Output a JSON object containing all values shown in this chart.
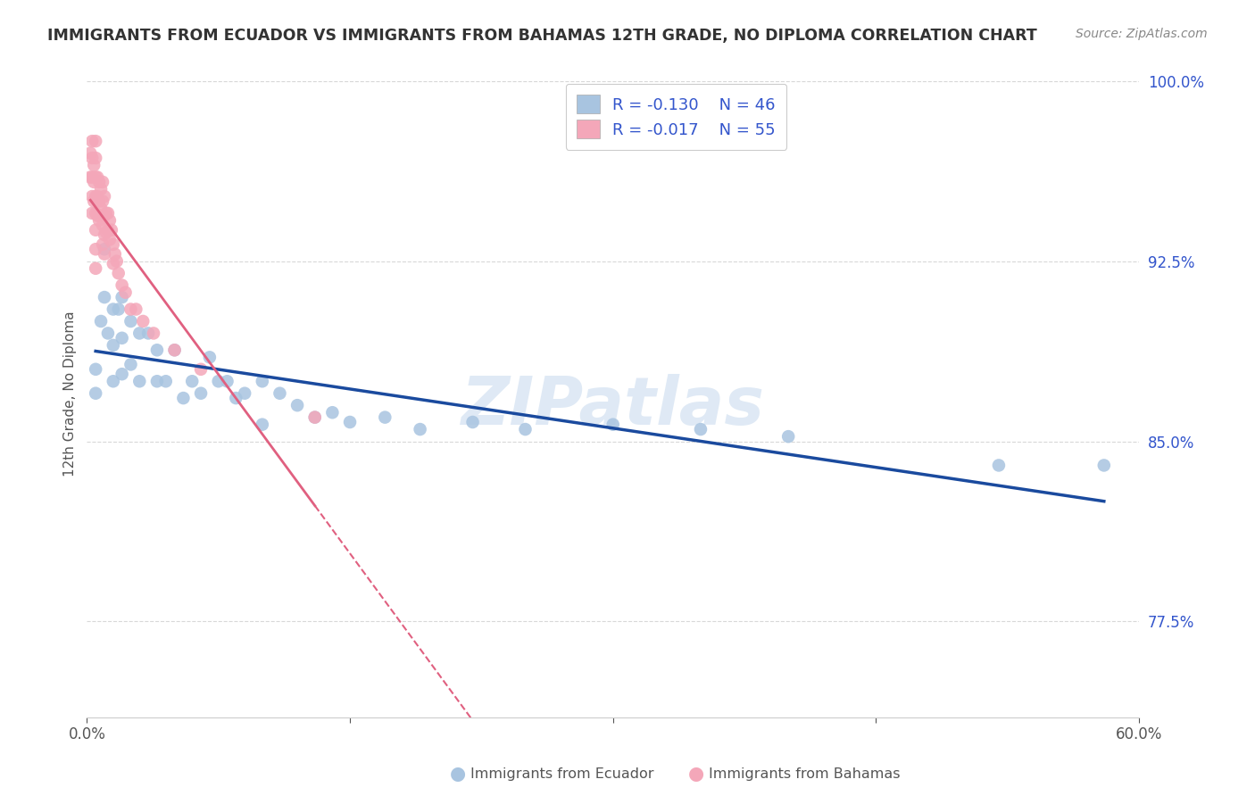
{
  "title": "IMMIGRANTS FROM ECUADOR VS IMMIGRANTS FROM BAHAMAS 12TH GRADE, NO DIPLOMA CORRELATION CHART",
  "source": "Source: ZipAtlas.com",
  "ylabel": "12th Grade, No Diploma",
  "xlim": [
    0.0,
    0.6
  ],
  "ylim": [
    0.735,
    1.005
  ],
  "yticks": [
    0.775,
    0.85,
    0.925,
    1.0
  ],
  "ytick_labels": [
    "77.5%",
    "85.0%",
    "92.5%",
    "100.0%"
  ],
  "xticks": [
    0.0,
    0.15,
    0.3,
    0.45,
    0.6
  ],
  "xtick_labels": [
    "0.0%",
    "",
    "",
    "",
    "60.0%"
  ],
  "ecuador_color": "#a8c4e0",
  "bahamas_color": "#f4a7b9",
  "ecuador_line_color": "#1a4a9e",
  "bahamas_line_color": "#e06080",
  "R_ecuador": -0.13,
  "N_ecuador": 46,
  "R_bahamas": -0.017,
  "N_bahamas": 55,
  "ecuador_x": [
    0.005,
    0.005,
    0.008,
    0.01,
    0.01,
    0.012,
    0.015,
    0.015,
    0.015,
    0.018,
    0.02,
    0.02,
    0.02,
    0.025,
    0.025,
    0.03,
    0.03,
    0.035,
    0.04,
    0.04,
    0.045,
    0.05,
    0.055,
    0.06,
    0.065,
    0.07,
    0.075,
    0.08,
    0.085,
    0.09,
    0.1,
    0.1,
    0.11,
    0.12,
    0.13,
    0.14,
    0.15,
    0.17,
    0.19,
    0.22,
    0.25,
    0.3,
    0.35,
    0.4,
    0.52,
    0.58
  ],
  "ecuador_y": [
    0.88,
    0.87,
    0.9,
    0.93,
    0.91,
    0.895,
    0.905,
    0.89,
    0.875,
    0.905,
    0.91,
    0.893,
    0.878,
    0.9,
    0.882,
    0.895,
    0.875,
    0.895,
    0.888,
    0.875,
    0.875,
    0.888,
    0.868,
    0.875,
    0.87,
    0.885,
    0.875,
    0.875,
    0.868,
    0.87,
    0.875,
    0.857,
    0.87,
    0.865,
    0.86,
    0.862,
    0.858,
    0.86,
    0.855,
    0.858,
    0.855,
    0.857,
    0.855,
    0.852,
    0.84,
    0.84
  ],
  "bahamas_x": [
    0.002,
    0.002,
    0.003,
    0.003,
    0.003,
    0.003,
    0.003,
    0.004,
    0.004,
    0.004,
    0.005,
    0.005,
    0.005,
    0.005,
    0.005,
    0.005,
    0.005,
    0.005,
    0.006,
    0.006,
    0.006,
    0.007,
    0.007,
    0.007,
    0.008,
    0.008,
    0.009,
    0.009,
    0.009,
    0.009,
    0.01,
    0.01,
    0.01,
    0.01,
    0.011,
    0.011,
    0.012,
    0.012,
    0.013,
    0.013,
    0.014,
    0.015,
    0.015,
    0.016,
    0.017,
    0.018,
    0.02,
    0.022,
    0.025,
    0.028,
    0.032,
    0.038,
    0.05,
    0.065,
    0.13
  ],
  "bahamas_y": [
    0.97,
    0.96,
    0.975,
    0.968,
    0.96,
    0.952,
    0.945,
    0.965,
    0.958,
    0.95,
    0.975,
    0.968,
    0.96,
    0.952,
    0.945,
    0.938,
    0.93,
    0.922,
    0.96,
    0.952,
    0.944,
    0.958,
    0.95,
    0.942,
    0.955,
    0.947,
    0.958,
    0.95,
    0.94,
    0.932,
    0.952,
    0.944,
    0.936,
    0.928,
    0.945,
    0.937,
    0.945,
    0.938,
    0.942,
    0.934,
    0.938,
    0.932,
    0.924,
    0.928,
    0.925,
    0.92,
    0.915,
    0.912,
    0.905,
    0.905,
    0.9,
    0.895,
    0.888,
    0.88,
    0.86
  ],
  "watermark": "ZIPatlas",
  "background_color": "#ffffff",
  "grid_color": "#d8d8d8"
}
